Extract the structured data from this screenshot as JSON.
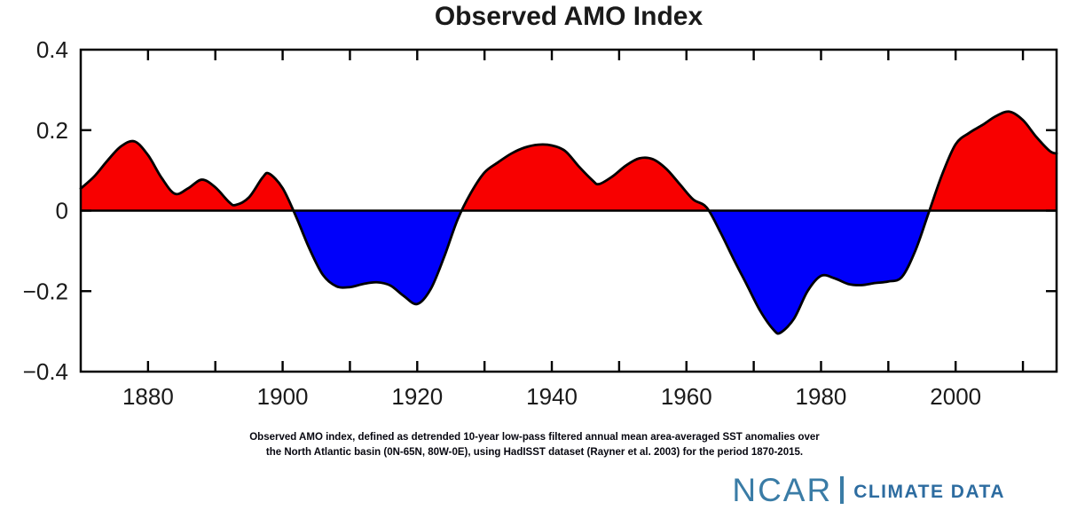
{
  "chart": {
    "title": "Observed AMO Index"
  },
  "chart_data": {
    "type": "area",
    "title": "Observed AMO Index",
    "xlabel": "",
    "ylabel": "",
    "xlim": [
      1870,
      2015
    ],
    "ylim": [
      -0.4,
      0.4
    ],
    "x_major_ticks": [
      1880,
      1900,
      1920,
      1940,
      1960,
      1980,
      2000
    ],
    "x_major_tick_labels": [
      "1880",
      "1900",
      "1920",
      "1940",
      "1960",
      "1980",
      "2000"
    ],
    "x_minor_tick_start": 1880,
    "x_minor_tick_end": 2010,
    "x_minor_tick_step": 10,
    "y_ticks": [
      -0.2,
      0,
      0.2
    ],
    "y_labeled_values": [
      0.4,
      0.2,
      0,
      -0.2,
      -0.4
    ],
    "y_labels": [
      "0.4",
      "0.2",
      "0",
      "−0.2",
      "−0.4"
    ],
    "baseline": 0,
    "grid": false,
    "legend": "none",
    "fill_above_color": "#f80000",
    "fill_below_color": "#0000fa",
    "line_color": "#000000",
    "axis_color": "#1a1a1a",
    "series": [
      {
        "name": "Observed AMO index (detrended, 10-yr low-pass filtered SST anomaly, °C)",
        "points": [
          [
            1870,
            0.055
          ],
          [
            1872,
            0.085
          ],
          [
            1874,
            0.125
          ],
          [
            1876,
            0.16
          ],
          [
            1878,
            0.172
          ],
          [
            1880,
            0.138
          ],
          [
            1882,
            0.082
          ],
          [
            1884,
            0.042
          ],
          [
            1886,
            0.056
          ],
          [
            1888,
            0.077
          ],
          [
            1890,
            0.058
          ],
          [
            1892,
            0.022
          ],
          [
            1893,
            0.014
          ],
          [
            1895,
            0.033
          ],
          [
            1897,
            0.082
          ],
          [
            1898,
            0.092
          ],
          [
            1900,
            0.056
          ],
          [
            1902,
            -0.015
          ],
          [
            1904,
            -0.095
          ],
          [
            1906,
            -0.16
          ],
          [
            1908,
            -0.188
          ],
          [
            1910,
            -0.19
          ],
          [
            1912,
            -0.182
          ],
          [
            1914,
            -0.178
          ],
          [
            1916,
            -0.186
          ],
          [
            1918,
            -0.212
          ],
          [
            1920,
            -0.232
          ],
          [
            1922,
            -0.195
          ],
          [
            1924,
            -0.115
          ],
          [
            1926,
            -0.022
          ],
          [
            1928,
            0.045
          ],
          [
            1930,
            0.095
          ],
          [
            1932,
            0.12
          ],
          [
            1934,
            0.142
          ],
          [
            1936,
            0.157
          ],
          [
            1938,
            0.164
          ],
          [
            1940,
            0.162
          ],
          [
            1942,
            0.148
          ],
          [
            1944,
            0.11
          ],
          [
            1946,
            0.076
          ],
          [
            1947,
            0.066
          ],
          [
            1949,
            0.085
          ],
          [
            1951,
            0.112
          ],
          [
            1953,
            0.13
          ],
          [
            1955,
            0.128
          ],
          [
            1957,
            0.104
          ],
          [
            1959,
            0.066
          ],
          [
            1961,
            0.028
          ],
          [
            1963,
            0.008
          ],
          [
            1965,
            -0.052
          ],
          [
            1967,
            -0.12
          ],
          [
            1969,
            -0.185
          ],
          [
            1971,
            -0.25
          ],
          [
            1973,
            -0.297
          ],
          [
            1974,
            -0.303
          ],
          [
            1976,
            -0.268
          ],
          [
            1978,
            -0.2
          ],
          [
            1980,
            -0.162
          ],
          [
            1982,
            -0.168
          ],
          [
            1984,
            -0.182
          ],
          [
            1986,
            -0.185
          ],
          [
            1988,
            -0.18
          ],
          [
            1990,
            -0.176
          ],
          [
            1992,
            -0.165
          ],
          [
            1994,
            -0.1
          ],
          [
            1996,
            -0.005
          ],
          [
            1998,
            0.09
          ],
          [
            2000,
            0.165
          ],
          [
            2002,
            0.193
          ],
          [
            2004,
            0.213
          ],
          [
            2006,
            0.235
          ],
          [
            2008,
            0.246
          ],
          [
            2010,
            0.225
          ],
          [
            2012,
            0.183
          ],
          [
            2014,
            0.148
          ],
          [
            2015,
            0.142
          ]
        ]
      }
    ]
  },
  "caption": {
    "line1": "Observed AMO index, defined as detrended 10-year low-pass filtered annual mean area-averaged SST anomalies over",
    "line2": "the North Atlantic basin (0N-65N, 80W-0E), using HadISST dataset (Rayner et al. 2003) for the period 1870-2015."
  },
  "logo": {
    "ncar": "NCAR",
    "climate_data": "CLIMATE DATA",
    "ncar_color": "#3a7ca6",
    "climate_color": "#2d6ca0"
  }
}
